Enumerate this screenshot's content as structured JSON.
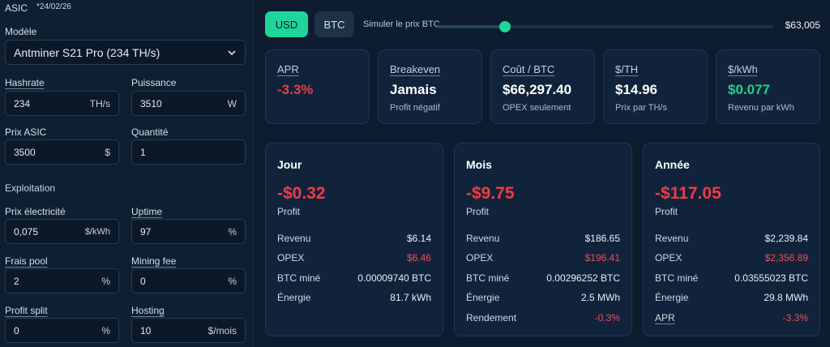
{
  "sidebar": {
    "section_title": "ASIC",
    "date": "*24/02/26",
    "model_label": "Modèle",
    "model_value": "Antminer S21 Pro (234 TH/s)",
    "hashrate": {
      "label": "Hashrate",
      "value": "234",
      "unit": "TH/s"
    },
    "power": {
      "label": "Puissance",
      "value": "3510",
      "unit": "W"
    },
    "asic_price": {
      "label": "Prix ASIC",
      "value": "3500",
      "unit": "$"
    },
    "quantity": {
      "label": "Quantité",
      "value": "1"
    },
    "operations_title": "Exploitation",
    "elec_price": {
      "label": "Prix électricité",
      "value": "0,075",
      "unit": "$/kWh"
    },
    "uptime": {
      "label": "Uptime",
      "value": "97",
      "unit": "%"
    },
    "pool_fee": {
      "label": "Frais pool",
      "value": "2",
      "unit": "%"
    },
    "mining_fee": {
      "label": "Mining fee",
      "value": "0",
      "unit": "%"
    },
    "profit_split": {
      "label": "Profit split",
      "value": "0",
      "unit": "%"
    },
    "hosting": {
      "label": "Hosting",
      "value": "10",
      "unit": "$/mois"
    }
  },
  "toolbar": {
    "usd_label": "USD",
    "btc_label": "BTC",
    "slider_label": "Simuler le prix BTC",
    "slider_value": "$63,005",
    "slider_fraction": 0.2,
    "accent_color": "#1ed59a"
  },
  "kpis": [
    {
      "title": "APR",
      "value": "-3.3%",
      "sub": ""
    },
    {
      "title": "Breakeven",
      "value": "Jamais",
      "sub": "Profit négatif"
    },
    {
      "title": "Coût / BTC",
      "value": "$66,297.40",
      "sub": "OPEX seulement"
    },
    {
      "title": "$/TH",
      "value": "$14.96",
      "sub": "Prix par TH/s"
    },
    {
      "title": "$/kWh",
      "value": "$0.077",
      "sub": "Revenu par kWh"
    }
  ],
  "periods": [
    {
      "title": "Jour",
      "profit": "-$0.32",
      "profit_label": "Profit",
      "rows": [
        {
          "k": "Revenu",
          "v": "$6.14"
        },
        {
          "k": "OPEX",
          "v": "$6.46"
        },
        {
          "k": "BTC miné",
          "v": "0.00009740 BTC"
        },
        {
          "k": "Énergie",
          "v": "81.7 kWh"
        }
      ]
    },
    {
      "title": "Mois",
      "profit": "-$9.75",
      "profit_label": "Profit",
      "rows": [
        {
          "k": "Revenu",
          "v": "$186.65"
        },
        {
          "k": "OPEX",
          "v": "$196.41"
        },
        {
          "k": "BTC miné",
          "v": "0.00296252 BTC"
        },
        {
          "k": "Énergie",
          "v": "2.5 MWh"
        },
        {
          "k": "Rendement",
          "v": "-0.3%"
        }
      ]
    },
    {
      "title": "Année",
      "profit": "-$117.05",
      "profit_label": "Profit",
      "rows": [
        {
          "k": "Revenu",
          "v": "$2,239.84"
        },
        {
          "k": "OPEX",
          "v": "$2,356.89"
        },
        {
          "k": "BTC miné",
          "v": "0.03555023 BTC"
        },
        {
          "k": "Énergie",
          "v": "29.8 MWh"
        },
        {
          "k": "APR",
          "v": "-3.3%"
        }
      ]
    }
  ]
}
